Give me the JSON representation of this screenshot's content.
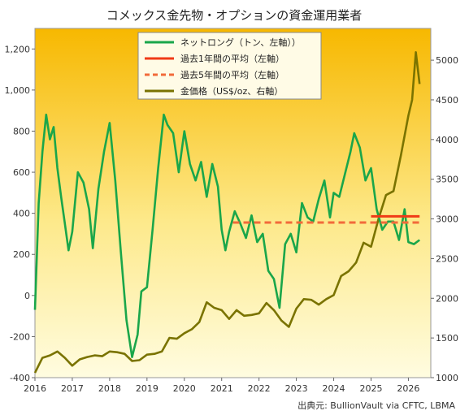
{
  "chart_data": {
    "type": "line",
    "title": "コメックス金先物・オプションの資金運用業者",
    "source": "出典元: BullionVault via CFTC, LBMA",
    "x_ticks": [
      "2016",
      "2017",
      "2018",
      "2019",
      "2020",
      "2021",
      "2022",
      "2023",
      "2024",
      "2025",
      "2026"
    ],
    "xlim": [
      2016.0,
      2026.6
    ],
    "y_left": {
      "lim": [
        -400,
        1300
      ],
      "ticks": [
        "1,200",
        "1,000",
        "800",
        "600",
        "400",
        "200",
        "0",
        "-200",
        "-400"
      ],
      "tick_values": [
        1200,
        1000,
        800,
        600,
        400,
        200,
        0,
        -200,
        -400
      ]
    },
    "y_right": {
      "lim": [
        1000,
        5400
      ],
      "ticks": [
        "5000",
        "4500",
        "4000",
        "3500",
        "3000",
        "2500",
        "2000",
        "1500",
        "1000"
      ],
      "tick_values": [
        5000,
        4500,
        4000,
        3500,
        3000,
        2500,
        2000,
        1500,
        1000
      ]
    },
    "legend": [
      "ネットロング（トン、左軸））",
      "過去1年間の平均（左軸）",
      "過去5年間の平均（左軸）",
      "金価格（US$/oz、右軸）"
    ],
    "colors": {
      "net_long": "#1aa64a",
      "avg_1y": "#f03a17",
      "avg_5y": "#f26a3a",
      "gold_price": "#7a7300",
      "bg_top": "#f7b800",
      "bg_bottom": "#fffce0"
    },
    "series": [
      {
        "name": "ネットロング（トン、左軸））",
        "axis": "left",
        "style": "solid",
        "x": [
          2016.0,
          2016.1,
          2016.2,
          2016.3,
          2016.4,
          2016.5,
          2016.6,
          2016.7,
          2016.8,
          2016.9,
          2017.0,
          2017.15,
          2017.3,
          2017.45,
          2017.55,
          2017.7,
          2017.85,
          2018.0,
          2018.15,
          2018.3,
          2018.45,
          2018.6,
          2018.75,
          2018.85,
          2019.0,
          2019.15,
          2019.3,
          2019.45,
          2019.55,
          2019.7,
          2019.85,
          2020.0,
          2020.15,
          2020.3,
          2020.45,
          2020.6,
          2020.75,
          2020.9,
          2021.0,
          2021.1,
          2021.2,
          2021.35,
          2021.5,
          2021.65,
          2021.8,
          2021.95,
          2022.1,
          2022.25,
          2022.4,
          2022.55,
          2022.7,
          2022.85,
          2023.0,
          2023.15,
          2023.3,
          2023.45,
          2023.6,
          2023.75,
          2023.9,
          2024.0,
          2024.15,
          2024.3,
          2024.45,
          2024.55,
          2024.7,
          2024.85,
          2025.0,
          2025.15,
          2025.3,
          2025.45,
          2025.6,
          2025.75,
          2025.9,
          2026.0,
          2026.15,
          2026.3
        ],
        "y": [
          -70,
          450,
          700,
          880,
          760,
          820,
          620,
          480,
          350,
          220,
          310,
          600,
          550,
          420,
          230,
          520,
          700,
          840,
          560,
          210,
          -120,
          -300,
          -190,
          20,
          40,
          320,
          620,
          880,
          830,
          790,
          600,
          800,
          640,
          560,
          650,
          480,
          640,
          530,
          320,
          220,
          310,
          410,
          350,
          280,
          390,
          260,
          300,
          120,
          80,
          -60,
          250,
          300,
          210,
          450,
          380,
          360,
          470,
          560,
          380,
          500,
          480,
          590,
          700,
          790,
          720,
          560,
          620,
          420,
          320,
          360,
          360,
          270,
          420,
          260,
          250,
          270
        ]
      },
      {
        "name": "過去1年間の平均（左軸）",
        "axis": "left",
        "style": "solid",
        "x": [
          2025.0,
          2026.3
        ],
        "y": [
          385,
          385
        ]
      },
      {
        "name": "過去5年間の平均（左軸）",
        "axis": "left",
        "style": "dashed",
        "x": [
          2021.3,
          2026.3
        ],
        "y": [
          355,
          355
        ]
      },
      {
        "name": "金価格（US$/oz、右軸）",
        "axis": "right",
        "style": "solid",
        "x": [
          2016.0,
          2016.2,
          2016.4,
          2016.6,
          2016.8,
          2017.0,
          2017.2,
          2017.4,
          2017.6,
          2017.8,
          2018.0,
          2018.2,
          2018.4,
          2018.6,
          2018.8,
          2019.0,
          2019.2,
          2019.4,
          2019.6,
          2019.8,
          2020.0,
          2020.2,
          2020.4,
          2020.6,
          2020.8,
          2021.0,
          2021.2,
          2021.4,
          2021.6,
          2021.8,
          2022.0,
          2022.2,
          2022.4,
          2022.6,
          2022.8,
          2023.0,
          2023.2,
          2023.4,
          2023.6,
          2023.8,
          2024.0,
          2024.2,
          2024.4,
          2024.6,
          2024.8,
          2025.0,
          2025.2,
          2025.4,
          2025.6,
          2025.8,
          2026.0,
          2026.1,
          2026.2,
          2026.3
        ],
        "y": [
          1060,
          1250,
          1280,
          1330,
          1250,
          1150,
          1230,
          1260,
          1280,
          1270,
          1330,
          1320,
          1300,
          1210,
          1220,
          1290,
          1300,
          1330,
          1500,
          1490,
          1560,
          1610,
          1700,
          1950,
          1880,
          1850,
          1740,
          1850,
          1780,
          1790,
          1810,
          1940,
          1850,
          1720,
          1640,
          1870,
          1990,
          1980,
          1920,
          1990,
          2040,
          2280,
          2340,
          2450,
          2700,
          2650,
          3000,
          3300,
          3350,
          3800,
          4300,
          4500,
          5100,
          4700
        ]
      }
    ]
  }
}
